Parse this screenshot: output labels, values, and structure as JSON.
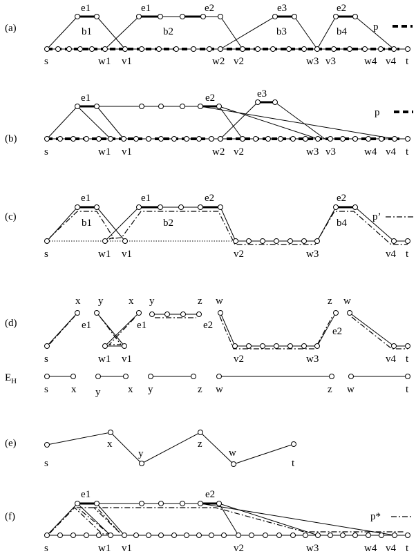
{
  "panels": {
    "a": {
      "label": "(a)",
      "legend": "p",
      "bottom_labels": [
        "s",
        "w1",
        "v1",
        "w2",
        "v2",
        "w3",
        "v3",
        "w4",
        "v4",
        "t"
      ],
      "edge_labels": [
        "e1",
        "e1",
        "e2",
        "e3",
        "e2"
      ],
      "detour_labels": [
        "b1",
        "b2",
        "b3",
        "b4"
      ]
    },
    "b": {
      "label": "(b)",
      "legend": "p",
      "bottom_labels": [
        "s",
        "w1",
        "v1",
        "w2",
        "v2",
        "w3",
        "v3",
        "w4",
        "v4",
        "t"
      ],
      "edge_labels": [
        "e1",
        "e2",
        "e3"
      ]
    },
    "c": {
      "label": "(c)",
      "legend": "p’",
      "bottom_labels": [
        "s",
        "w1",
        "v1",
        "v2",
        "w3",
        "v4",
        "t"
      ],
      "edge_labels": [
        "e1",
        "e1",
        "e2",
        "e2"
      ],
      "detour_labels": [
        "b1",
        "b2",
        "b4"
      ]
    },
    "d": {
      "label": "(d)",
      "top_labels": [
        "x",
        "y",
        "x",
        "y",
        "z",
        "w",
        "z",
        "w"
      ],
      "edge_labels": [
        "e1",
        "e1",
        "e2",
        "e2"
      ],
      "bottom_labels": [
        "s",
        "w1",
        "v1",
        "v2",
        "w3",
        "v4",
        "t"
      ],
      "eh_label": "E",
      "eh_sub": "H",
      "eh_labels": [
        "s",
        "x",
        "y",
        "x",
        "y",
        "z",
        "w",
        "z",
        "w",
        "t"
      ]
    },
    "e": {
      "label": "(e)",
      "node_labels": [
        "s",
        "x",
        "y",
        "z",
        "w",
        "t"
      ]
    },
    "f": {
      "label": "(f)",
      "legend": "p*",
      "edge_labels": [
        "e1",
        "e2"
      ],
      "bottom_labels": [
        "s",
        "w1",
        "v1",
        "v2",
        "w3",
        "w4",
        "v4",
        "t"
      ]
    }
  }
}
